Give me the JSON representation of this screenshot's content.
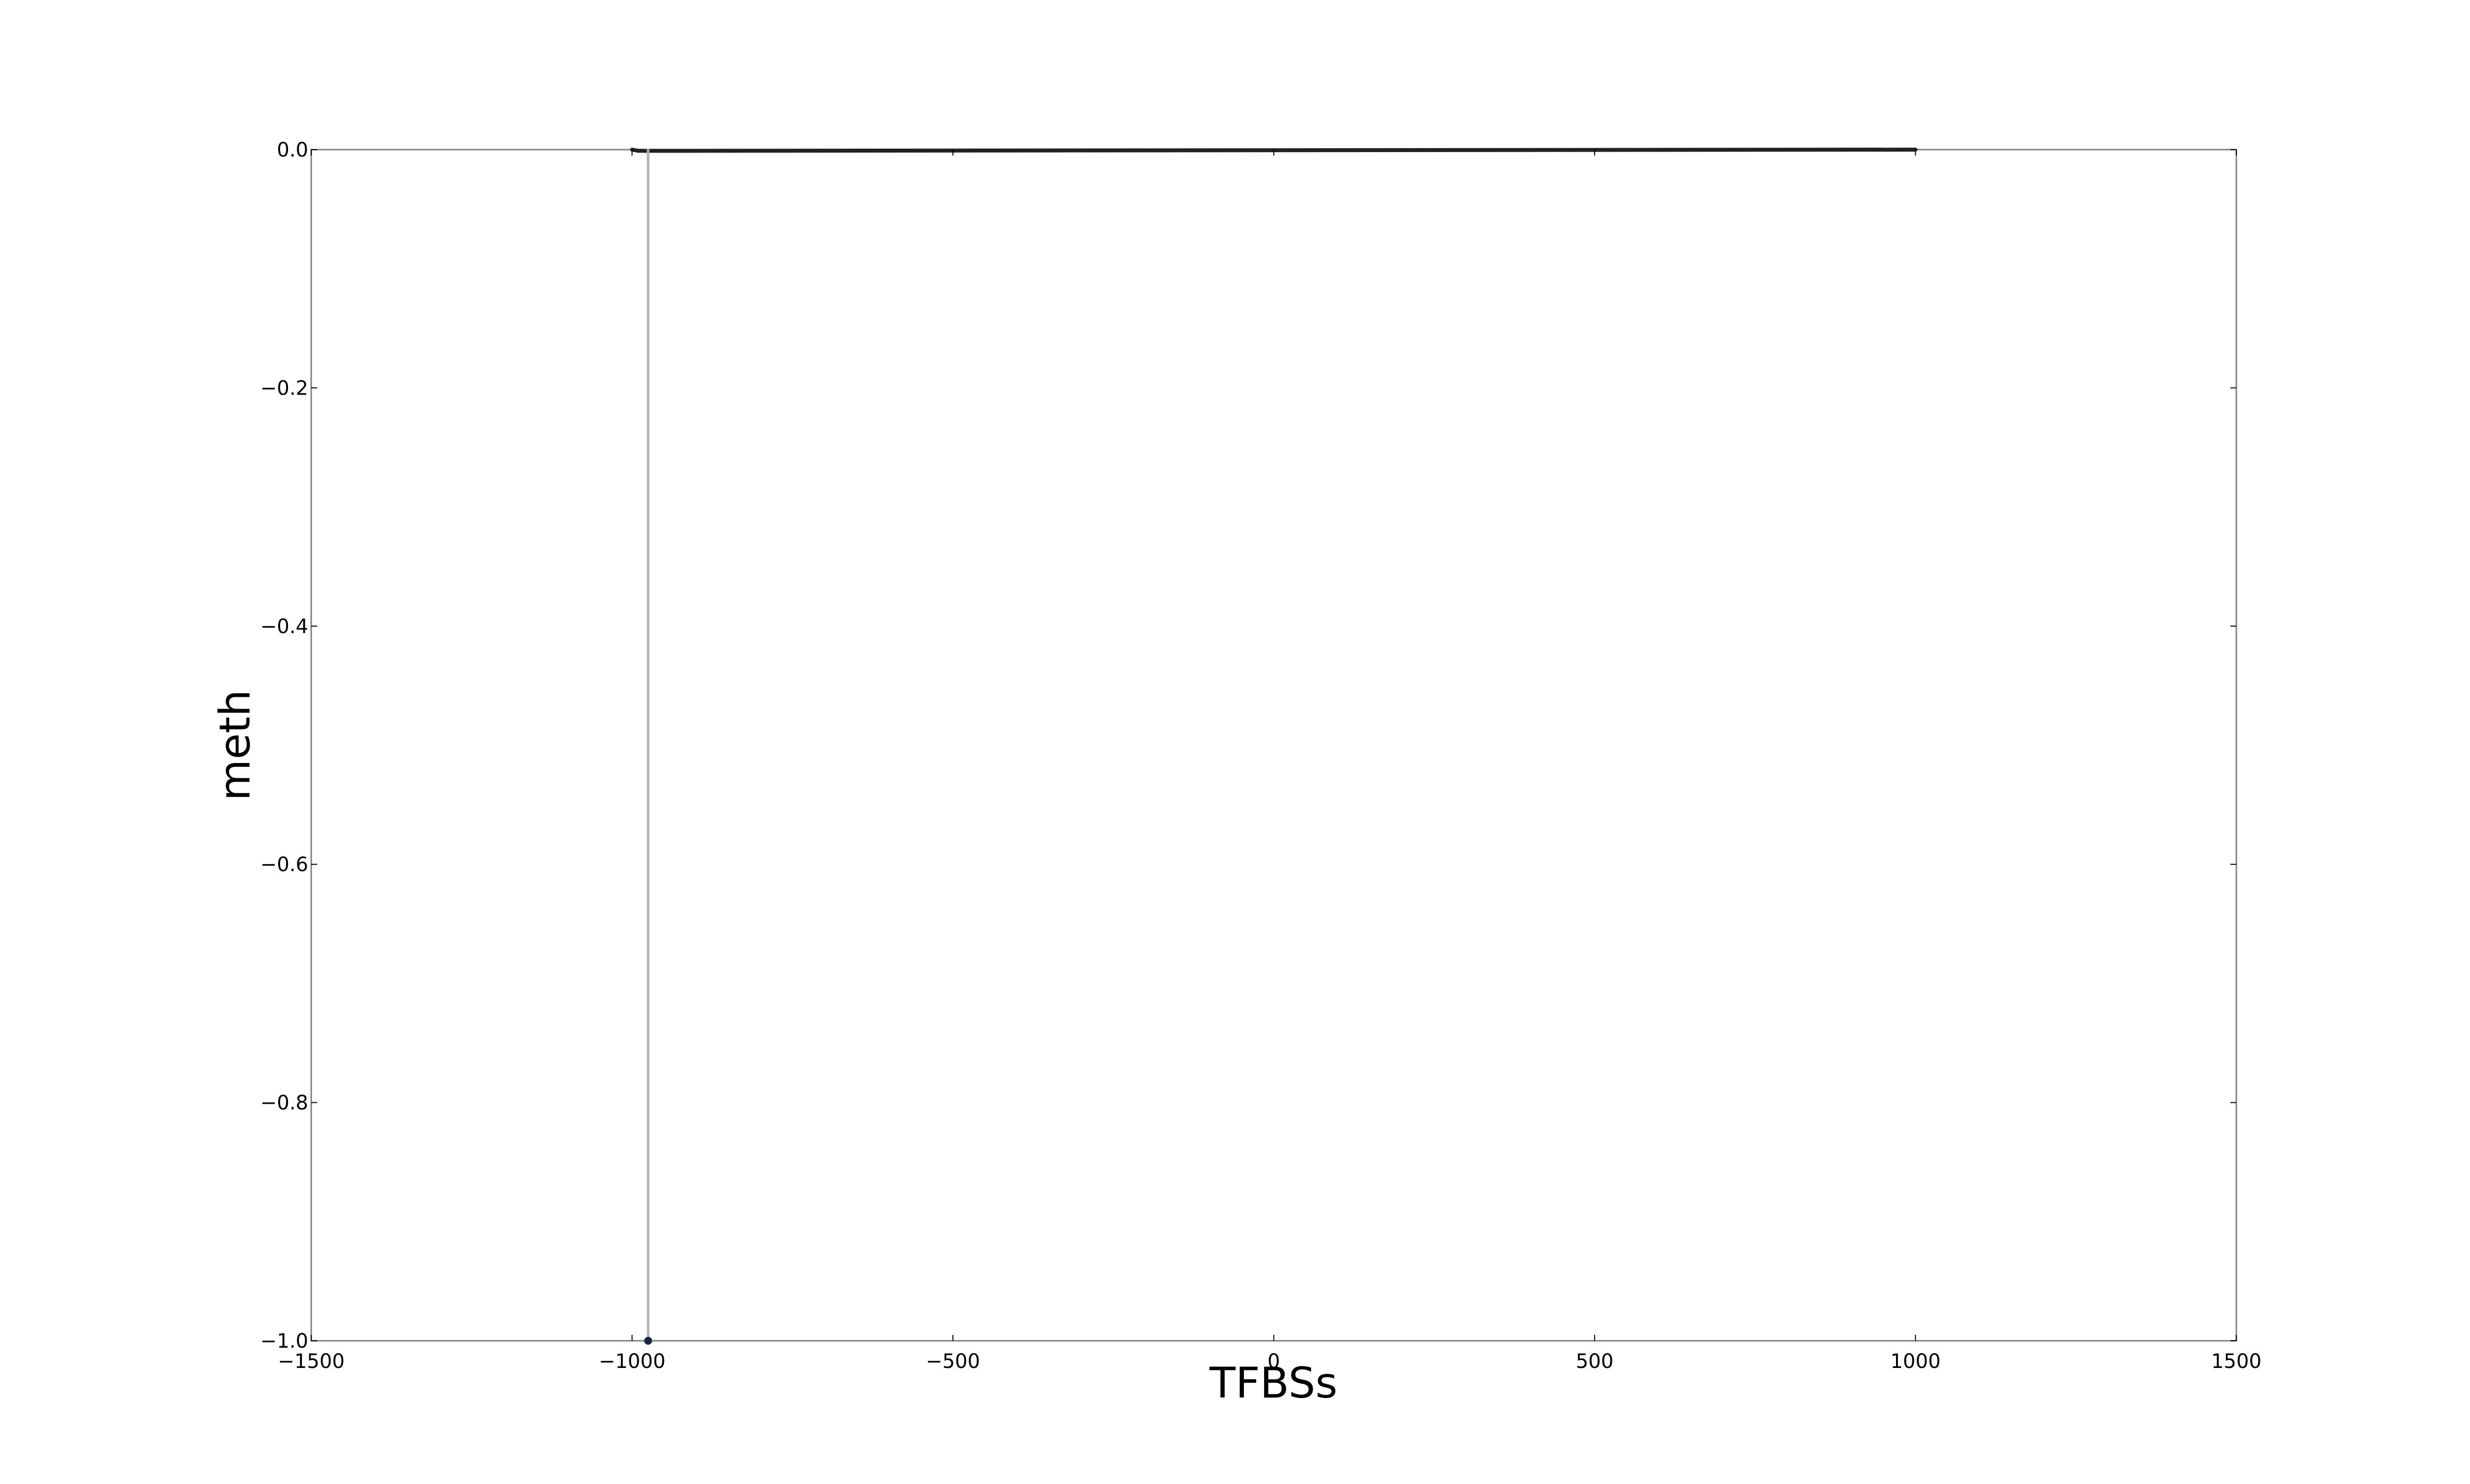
{
  "chart_data": {
    "type": "line",
    "title": "",
    "xlabel": "TFBSs",
    "ylabel": "meth",
    "xlim": [
      -1500,
      1500
    ],
    "ylim": [
      -1.0,
      0.0
    ],
    "x_ticks": [
      -1500,
      -1000,
      -500,
      0,
      500,
      1000,
      1500
    ],
    "x_tick_labels": [
      "−1500",
      "−1000",
      "−500",
      "0",
      "500",
      "1000",
      "1500"
    ],
    "y_ticks": [
      0.0,
      -0.2,
      -0.4,
      -0.6,
      -0.8,
      -1.0
    ],
    "y_tick_labels": [
      "0.0",
      "−0.2",
      "−0.4",
      "−0.6",
      "−0.8",
      "−1.0"
    ],
    "grid": false,
    "legend": "none",
    "series": [
      {
        "color": "#222222",
        "x": [
          -1000,
          -990,
          1000
        ],
        "y": [
          0.0,
          -0.001,
          0.0
        ]
      },
      {
        "color": "#b0b0b0",
        "x": [
          -975,
          -975
        ],
        "y": [
          0.0,
          -1.0
        ]
      }
    ],
    "markers": [
      {
        "x": -975,
        "y": -1.0,
        "color": "#1a2540"
      }
    ]
  }
}
